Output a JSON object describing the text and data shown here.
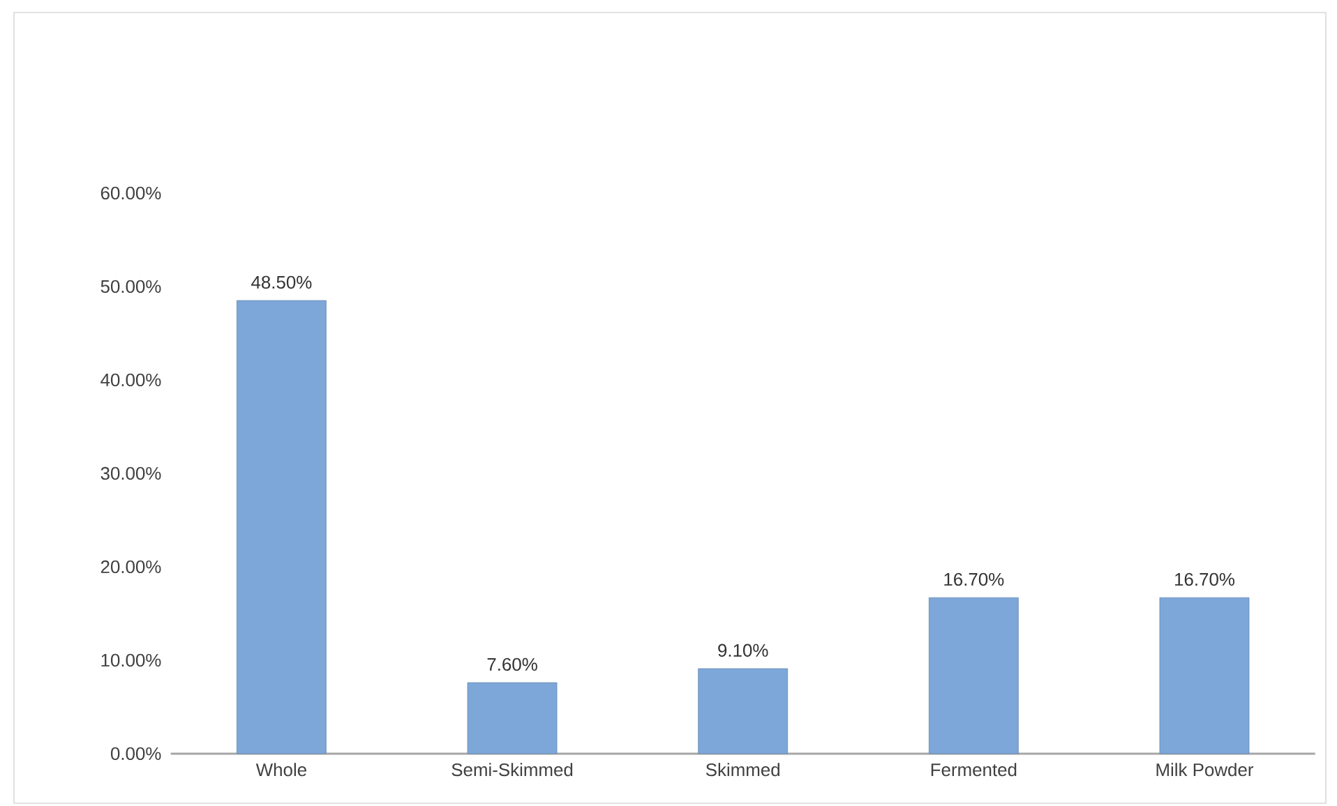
{
  "chart_data": {
    "type": "bar",
    "categories": [
      "Whole",
      "Semi-Skimmed",
      "Skimmed",
      "Fermented",
      "Milk Powder"
    ],
    "values": [
      48.5,
      7.6,
      9.1,
      16.7,
      16.7
    ],
    "value_labels": [
      "48.50%",
      "7.60%",
      "9.10%",
      "16.70%",
      "16.70%"
    ],
    "color": "#7da7d9",
    "ylim": [
      0,
      60
    ],
    "yticks": [
      {
        "value": 0,
        "label": "0.00%"
      },
      {
        "value": 10,
        "label": "10.00%"
      },
      {
        "value": 20,
        "label": "20.00%"
      },
      {
        "value": 30,
        "label": "30.00%"
      },
      {
        "value": 40,
        "label": "40.00%"
      },
      {
        "value": 50,
        "label": "50.00%"
      },
      {
        "value": 60,
        "label": "60.00%"
      }
    ],
    "grid": false
  }
}
